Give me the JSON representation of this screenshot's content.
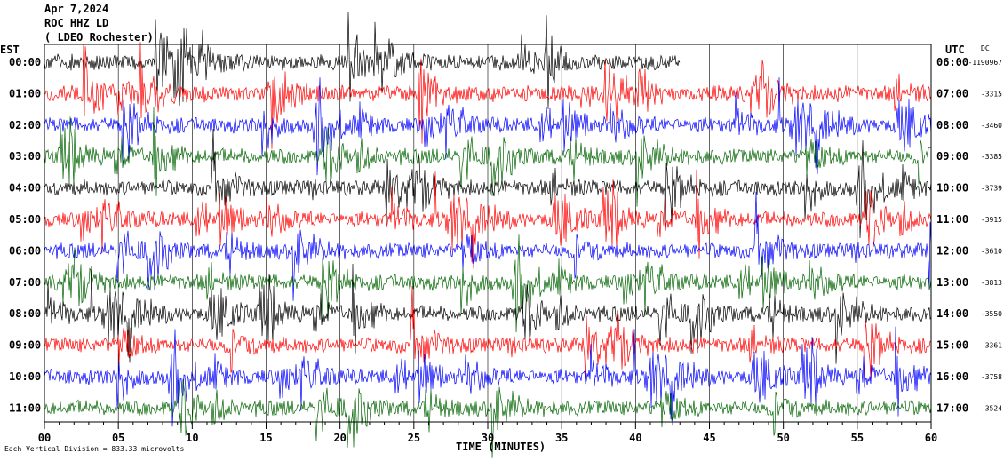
{
  "header": {
    "date": "Apr 7,2024",
    "station": "ROC HHZ LD",
    "site": "( LDEO Rochester)"
  },
  "left_axis_title": "EST",
  "right_axis_title": "UTC",
  "dc_title": "DC",
  "footer": {
    "note": "Each Vertical Division = 833.33 microvolts",
    "xlabel": "TIME (MINUTES)"
  },
  "colors": [
    "#000000",
    "#ff0000",
    "#0000ff",
    "#006400"
  ],
  "chart_data": {
    "type": "line",
    "title": "ROC HHZ LD",
    "xlabel": "TIME (MINUTES)",
    "xlim": [
      0,
      60
    ],
    "x_ticks": [
      "00",
      "05",
      "10",
      "15",
      "20",
      "25",
      "30",
      "35",
      "40",
      "45",
      "50",
      "55",
      "60"
    ],
    "rows": [
      {
        "est": "00:00",
        "utc": "06:00",
        "dc": "-1190967",
        "color": "#000000",
        "end_minute": 43
      },
      {
        "est": "01:00",
        "utc": "07:00",
        "dc": "-3315",
        "color": "#ff0000",
        "end_minute": 60
      },
      {
        "est": "02:00",
        "utc": "08:00",
        "dc": "-3460",
        "color": "#0000ff",
        "end_minute": 60
      },
      {
        "est": "03:00",
        "utc": "09:00",
        "dc": "-3385",
        "color": "#006400",
        "end_minute": 60
      },
      {
        "est": "04:00",
        "utc": "10:00",
        "dc": "-3739",
        "color": "#000000",
        "end_minute": 60
      },
      {
        "est": "05:00",
        "utc": "11:00",
        "dc": "-3915",
        "color": "#ff0000",
        "end_minute": 60
      },
      {
        "est": "06:00",
        "utc": "12:00",
        "dc": "-3610",
        "color": "#0000ff",
        "end_minute": 60
      },
      {
        "est": "07:00",
        "utc": "13:00",
        "dc": "-3813",
        "color": "#006400",
        "end_minute": 60
      },
      {
        "est": "08:00",
        "utc": "14:00",
        "dc": "-3550",
        "color": "#000000",
        "end_minute": 60
      },
      {
        "est": "09:00",
        "utc": "15:00",
        "dc": "-3361",
        "color": "#ff0000",
        "end_minute": 60
      },
      {
        "est": "10:00",
        "utc": "16:00",
        "dc": "-3758",
        "color": "#0000ff",
        "end_minute": 60
      },
      {
        "est": "11:00",
        "utc": "17:00",
        "dc": "-3524",
        "color": "#006400",
        "end_minute": 60
      }
    ]
  }
}
